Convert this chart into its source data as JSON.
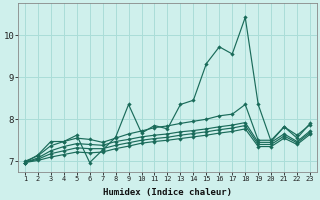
{
  "xlabel": "Humidex (Indice chaleur)",
  "bg_color": "#cff0ec",
  "grid_color": "#aaddd8",
  "line_color": "#1a6b5a",
  "xlim": [
    0.5,
    23.5
  ],
  "ylim": [
    6.75,
    10.75
  ],
  "yticks": [
    7,
    8,
    9,
    10
  ],
  "xticks": [
    1,
    2,
    3,
    4,
    5,
    6,
    7,
    8,
    9,
    10,
    11,
    12,
    13,
    14,
    15,
    16,
    17,
    18,
    19,
    20,
    21,
    22,
    23
  ],
  "series": [
    {
      "x": [
        1,
        2,
        3,
        4,
        5,
        6,
        7,
        8,
        9,
        10,
        11,
        12,
        13,
        14,
        15,
        16,
        17,
        18,
        19,
        20,
        21,
        22,
        23
      ],
      "y": [
        6.97,
        7.15,
        7.47,
        7.47,
        7.62,
        6.97,
        7.27,
        7.57,
        8.35,
        7.67,
        7.85,
        7.77,
        8.35,
        8.45,
        9.32,
        9.72,
        9.55,
        10.42,
        8.35,
        7.47,
        7.82,
        7.62,
        7.87
      ]
    },
    {
      "x": [
        1,
        2,
        3,
        4,
        5,
        6,
        7,
        8,
        9,
        10,
        11,
        12,
        13,
        14,
        15,
        16,
        17,
        18,
        19,
        20,
        21,
        22,
        23
      ],
      "y": [
        7.0,
        7.13,
        7.37,
        7.47,
        7.55,
        7.52,
        7.45,
        7.55,
        7.65,
        7.72,
        7.8,
        7.84,
        7.9,
        7.95,
        8.0,
        8.08,
        8.12,
        8.35,
        7.5,
        7.5,
        7.82,
        7.55,
        7.9
      ]
    },
    {
      "x": [
        1,
        2,
        3,
        4,
        5,
        6,
        7,
        8,
        9,
        10,
        11,
        12,
        13,
        14,
        15,
        16,
        17,
        18,
        19,
        20,
        21,
        22,
        23
      ],
      "y": [
        6.97,
        7.08,
        7.25,
        7.35,
        7.42,
        7.4,
        7.38,
        7.47,
        7.52,
        7.58,
        7.62,
        7.65,
        7.7,
        7.73,
        7.77,
        7.82,
        7.86,
        7.92,
        7.45,
        7.45,
        7.65,
        7.47,
        7.72
      ]
    },
    {
      "x": [
        1,
        2,
        3,
        4,
        5,
        6,
        7,
        8,
        9,
        10,
        11,
        12,
        13,
        14,
        15,
        16,
        17,
        18,
        19,
        20,
        21,
        22,
        23
      ],
      "y": [
        6.97,
        7.05,
        7.18,
        7.25,
        7.32,
        7.3,
        7.3,
        7.38,
        7.44,
        7.5,
        7.54,
        7.57,
        7.62,
        7.66,
        7.7,
        7.75,
        7.79,
        7.85,
        7.4,
        7.4,
        7.6,
        7.44,
        7.68
      ]
    },
    {
      "x": [
        1,
        2,
        3,
        4,
        5,
        6,
        7,
        8,
        9,
        10,
        11,
        12,
        13,
        14,
        15,
        16,
        17,
        18,
        19,
        20,
        21,
        22,
        23
      ],
      "y": [
        6.97,
        7.02,
        7.1,
        7.16,
        7.22,
        7.2,
        7.22,
        7.3,
        7.36,
        7.43,
        7.47,
        7.5,
        7.54,
        7.58,
        7.62,
        7.67,
        7.71,
        7.77,
        7.35,
        7.35,
        7.55,
        7.4,
        7.64
      ]
    }
  ]
}
